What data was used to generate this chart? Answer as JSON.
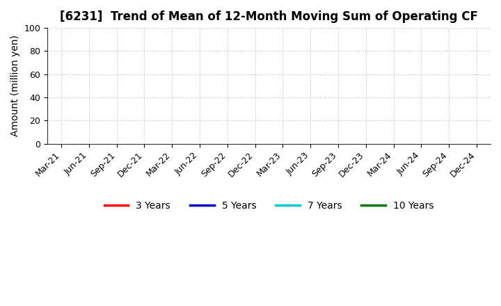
{
  "title": "[6231]  Trend of Mean of 12-Month Moving Sum of Operating CF",
  "ylabel": "Amount (million yen)",
  "ylim": [
    0,
    100
  ],
  "yticks": [
    0,
    20,
    40,
    60,
    80,
    100
  ],
  "x_labels": [
    "Mar-21",
    "Jun-21",
    "Sep-21",
    "Dec-21",
    "Mar-22",
    "Jun-22",
    "Sep-22",
    "Dec-22",
    "Mar-23",
    "Jun-23",
    "Sep-23",
    "Dec-23",
    "Mar-24",
    "Jun-24",
    "Sep-24",
    "Dec-24"
  ],
  "background_color": "#ffffff",
  "grid_color": "#bbbbbb",
  "legend_entries": [
    {
      "label": "3 Years",
      "color": "#ff0000"
    },
    {
      "label": "5 Years",
      "color": "#0000cc"
    },
    {
      "label": "7 Years",
      "color": "#00cccc"
    },
    {
      "label": "10 Years",
      "color": "#007700"
    }
  ],
  "title_fontsize": 12,
  "axis_label_fontsize": 10,
  "tick_fontsize": 9
}
